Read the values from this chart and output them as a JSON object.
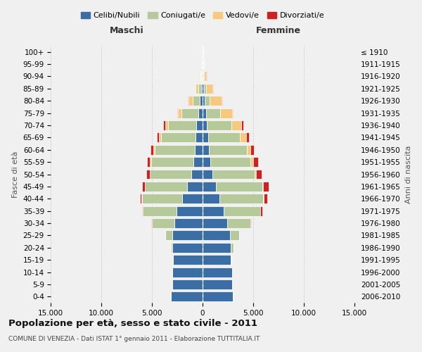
{
  "age_groups": [
    "100+",
    "95-99",
    "90-94",
    "85-89",
    "80-84",
    "75-79",
    "70-74",
    "65-69",
    "60-64",
    "55-59",
    "50-54",
    "45-49",
    "40-44",
    "35-39",
    "30-34",
    "25-29",
    "20-24",
    "15-19",
    "10-14",
    "5-9",
    "0-4"
  ],
  "birth_years": [
    "≤ 1910",
    "1911-1915",
    "1916-1920",
    "1921-1925",
    "1926-1930",
    "1931-1935",
    "1936-1940",
    "1941-1945",
    "1946-1950",
    "1951-1955",
    "1956-1960",
    "1961-1965",
    "1966-1970",
    "1971-1975",
    "1976-1980",
    "1981-1985",
    "1986-1990",
    "1991-1995",
    "1996-2000",
    "2001-2005",
    "2006-2010"
  ],
  "colors": {
    "celibi": "#3a6ea5",
    "coniugati": "#b5c99a",
    "vedovi": "#f5c97e",
    "divorziati": "#cc2222"
  },
  "maschi": {
    "celibi": [
      20,
      30,
      60,
      150,
      250,
      400,
      600,
      700,
      750,
      900,
      1100,
      1500,
      2000,
      2600,
      2800,
      3000,
      3000,
      2900,
      3000,
      3000,
      3100
    ],
    "coniugati": [
      10,
      20,
      70,
      300,
      700,
      1700,
      2800,
      3400,
      4000,
      4200,
      4100,
      4200,
      4000,
      3300,
      2200,
      700,
      150,
      30,
      10,
      5,
      5
    ],
    "vedovi": [
      3,
      15,
      60,
      220,
      450,
      350,
      280,
      180,
      80,
      80,
      40,
      20,
      15,
      10,
      5,
      5,
      0,
      0,
      0,
      0,
      0
    ],
    "divorziati": [
      0,
      5,
      10,
      15,
      40,
      70,
      180,
      200,
      280,
      330,
      310,
      280,
      200,
      80,
      40,
      10,
      5,
      0,
      0,
      0,
      0
    ]
  },
  "femmine": {
    "celibi": [
      20,
      40,
      80,
      150,
      200,
      350,
      450,
      550,
      650,
      750,
      950,
      1300,
      1700,
      2100,
      2400,
      2700,
      2800,
      2800,
      2900,
      2900,
      3000
    ],
    "coniugati": [
      5,
      15,
      50,
      200,
      500,
      1400,
      2400,
      3100,
      3700,
      4000,
      4200,
      4600,
      4300,
      3600,
      2300,
      900,
      250,
      60,
      10,
      5,
      5
    ],
    "vedovi": [
      15,
      70,
      250,
      650,
      1150,
      1150,
      950,
      650,
      350,
      250,
      150,
      80,
      60,
      25,
      10,
      5,
      5,
      0,
      0,
      0,
      0
    ],
    "divorziati": [
      0,
      5,
      10,
      25,
      70,
      90,
      200,
      250,
      400,
      460,
      520,
      580,
      320,
      150,
      50,
      20,
      5,
      0,
      0,
      0,
      0
    ]
  },
  "title": "Popolazione per età, sesso e stato civile - 2011",
  "subtitle": "COMUNE DI VENEZIA - Dati ISTAT 1° gennaio 2011 - Elaborazione TUTTITALIA.IT",
  "xlabel_left": "Maschi",
  "xlabel_right": "Femmine",
  "ylabel_left": "Fasce di età",
  "ylabel_right": "Anni di nascita",
  "xlim": 15000,
  "legend_labels": [
    "Celibi/Nubili",
    "Coniugati/e",
    "Vedovi/e",
    "Divorziati/e"
  ],
  "background_color": "#f0f0f0"
}
